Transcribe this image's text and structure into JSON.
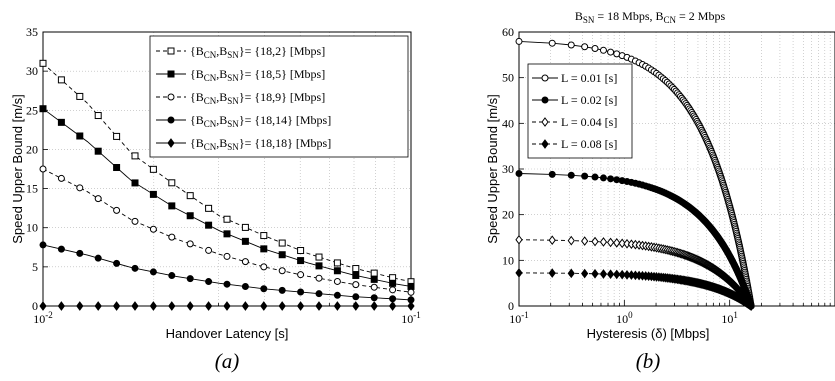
{
  "chart_data": [
    {
      "type": "line",
      "panel_label": "(a)",
      "xlabel": "Handover Latency [s]",
      "ylabel": "Speed Upper Bound [m/s]",
      "xscale": "log",
      "xlim": [
        0.01,
        0.1
      ],
      "ylim": [
        0,
        35
      ],
      "yticks": [
        "0",
        "5",
        "10",
        "15",
        "20",
        "25",
        "30",
        "35"
      ],
      "xticks": [
        {
          "base": "10",
          "exp": "-2",
          "value": 0.01
        },
        {
          "base": "10",
          "exp": "-1",
          "value": 0.1
        }
      ],
      "grid": true,
      "legend_placement": "top-right",
      "x": [
        0.01,
        0.0132,
        0.0174,
        0.0229,
        0.0302,
        0.0398,
        0.0525,
        0.0692,
        0.0912,
        0.1
      ],
      "series": [
        {
          "label_main": "{B",
          "sub1": "CN",
          "mid": ",B",
          "sub2": "SN",
          "label_tail": "}= {18,2} [Mbps]",
          "color": "#000000",
          "marker": "square-open",
          "dash": "4,3",
          "values": [
            31,
            25.9,
            19.5,
            15.4,
            11.5,
            9.0,
            6.7,
            4.9,
            3.5,
            3.1
          ]
        },
        {
          "label_main": "{B",
          "sub1": "CN",
          "mid": ",B",
          "sub2": "SN",
          "label_tail": "}= {18,5} [Mbps]",
          "color": "#000000",
          "marker": "square-filled",
          "dash": "",
          "values": [
            25.2,
            21.0,
            16.0,
            12.5,
            9.6,
            7.3,
            5.5,
            4.0,
            2.8,
            2.5
          ]
        },
        {
          "label_main": "{B",
          "sub1": "CN",
          "mid": ",B",
          "sub2": "SN",
          "label_tail": "}= {18,9} [Mbps]",
          "color": "#000000",
          "marker": "circle-open",
          "dash": "4,3",
          "values": [
            17.5,
            14.6,
            11.0,
            8.6,
            6.6,
            5.0,
            3.8,
            2.8,
            2.0,
            1.75
          ]
        },
        {
          "label_main": "{B",
          "sub1": "CN",
          "mid": ",B",
          "sub2": "SN",
          "label_tail": "}= {18,14} [Mbps]",
          "color": "#000000",
          "marker": "circle-filled",
          "dash": "",
          "values": [
            7.8,
            6.5,
            4.9,
            3.8,
            2.9,
            2.2,
            1.7,
            1.2,
            0.9,
            0.78
          ]
        },
        {
          "label_main": "{B",
          "sub1": "CN",
          "mid": ",B",
          "sub2": "SN",
          "label_tail": "}= {18,18} [Mbps]",
          "color": "#000000",
          "marker": "diamond-filled",
          "dash": "",
          "values": [
            0,
            0,
            0,
            0,
            0,
            0,
            0,
            0,
            0,
            0
          ]
        }
      ]
    },
    {
      "type": "line",
      "panel_label": "(b)",
      "title_parts": {
        "b1": "B",
        "s1": "SN",
        "t1": " = 18 Mbps, B",
        "s2": "CN",
        "t2": " = 2 Mbps"
      },
      "xlabel": "Hysteresis (δ) [Mbps]",
      "ylabel": "Speed Upper Bound [m/s]",
      "xscale": "log",
      "xlim": [
        0.1,
        100
      ],
      "ylim": [
        0,
        60
      ],
      "yticks": [
        "0",
        "10",
        "20",
        "30",
        "40",
        "50",
        "60"
      ],
      "xticks": [
        {
          "base": "10",
          "exp": "-1",
          "value": 0.1
        },
        {
          "base": "10",
          "exp": "0",
          "value": 1
        },
        {
          "base": "10",
          "exp": "1",
          "value": 10
        }
      ],
      "grid": true,
      "legend_placement": "top-left",
      "x_max_data": 16,
      "series": [
        {
          "label": "L = 0.01 [s]",
          "color": "#000000",
          "marker": "circle-open",
          "dash": "",
          "y0": 58.3
        },
        {
          "label": "L = 0.02 [s]",
          "color": "#000000",
          "marker": "circle-filled",
          "dash": "",
          "y0": 29.2
        },
        {
          "label": "L = 0.04 [s]",
          "color": "#000000",
          "marker": "diamond-open",
          "dash": "4,3",
          "y0": 14.6
        },
        {
          "label": "L = 0.08 [s]",
          "color": "#000000",
          "marker": "diamond-filled",
          "dash": "4,3",
          "y0": 7.3
        }
      ]
    }
  ]
}
